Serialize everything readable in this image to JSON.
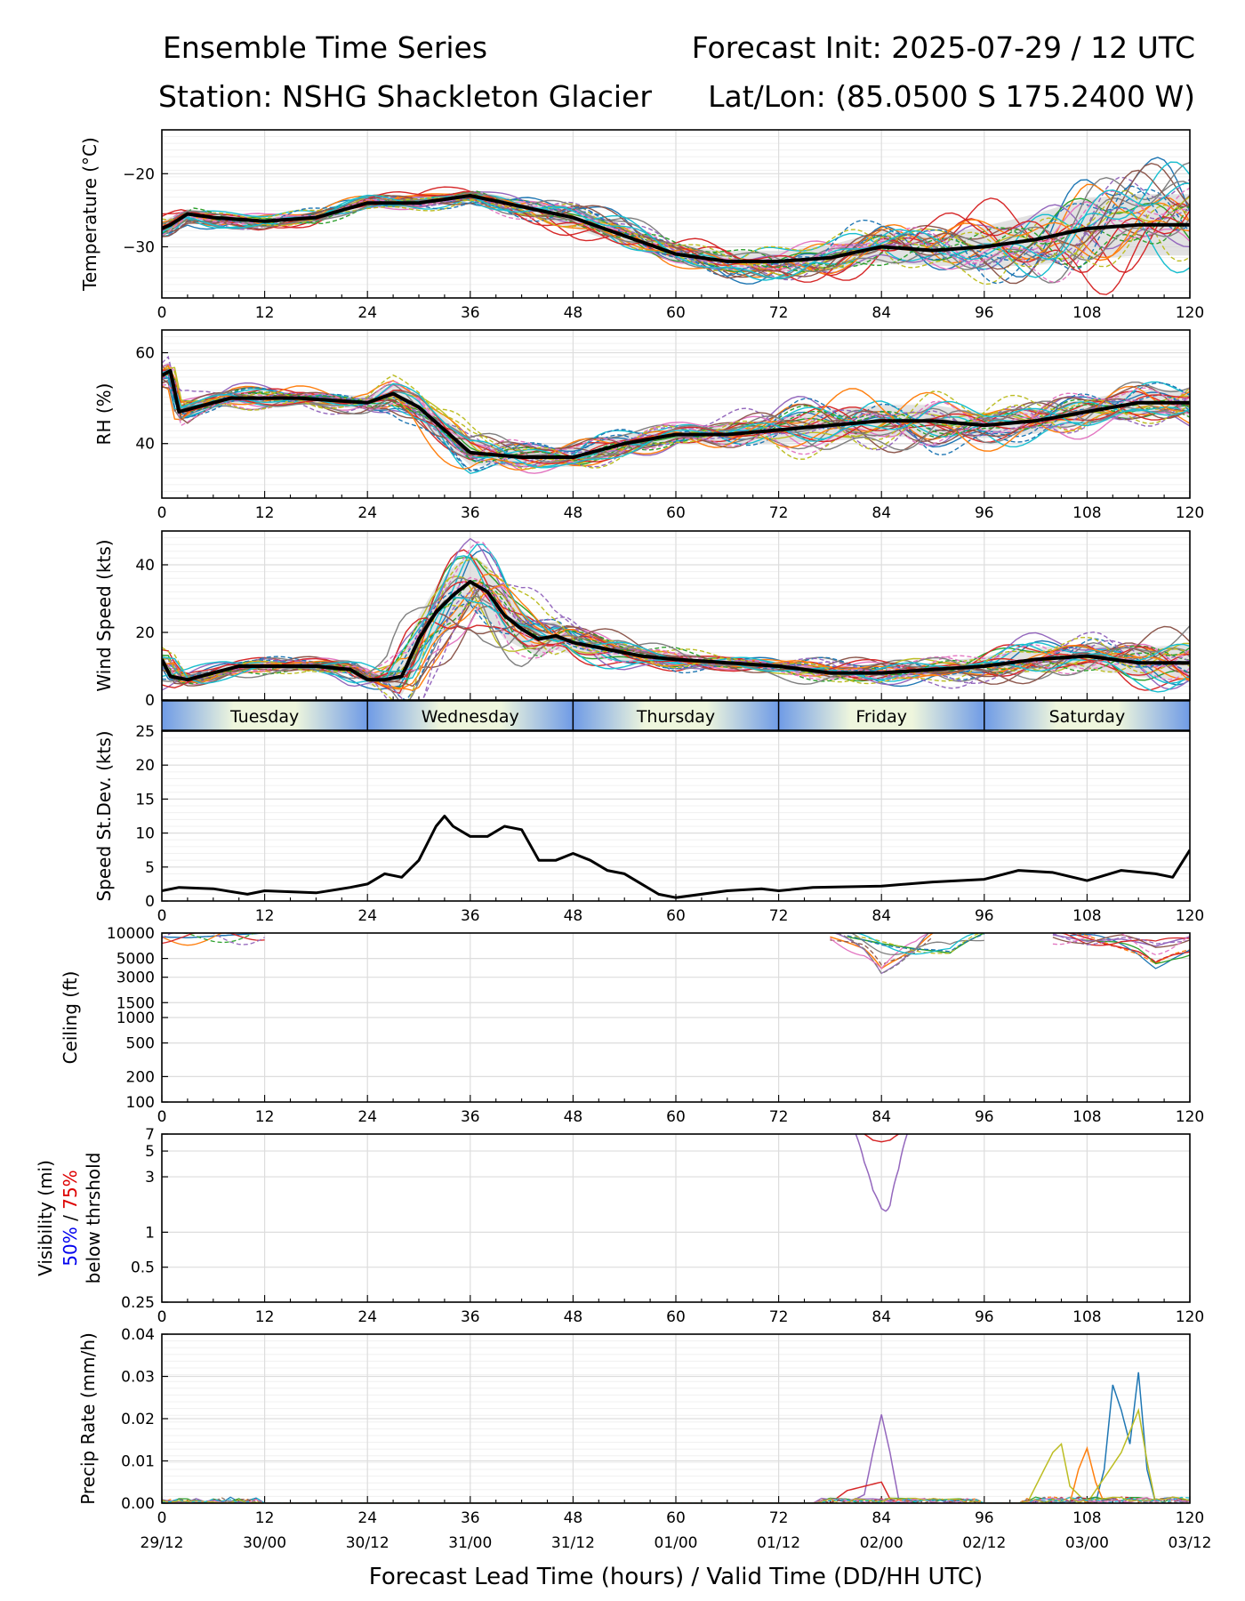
{
  "header": {
    "title": "Ensemble Time Series",
    "init": "Forecast Init: 2025-07-29 / 12 UTC",
    "station": "Station: NSHG Shackleton Glacier",
    "latlon": "Lat/Lon: (85.0500 S 175.2400 W)"
  },
  "xaxis": {
    "label": "Forecast Lead Time (hours) / Valid Time (DD/HH UTC)",
    "ticks": [
      0,
      12,
      24,
      36,
      48,
      60,
      72,
      84,
      96,
      108,
      120
    ],
    "valid_labels": [
      "29/12",
      "30/00",
      "30/12",
      "31/00",
      "31/12",
      "01/00",
      "01/12",
      "02/00",
      "02/12",
      "03/00",
      "03/12"
    ]
  },
  "day_band": [
    "Tuesday",
    "Wednesday",
    "Thursday",
    "Friday",
    "Saturday"
  ],
  "member_colors": [
    "#1f77b4",
    "#ff7f0e",
    "#2ca02c",
    "#d62728",
    "#9467bd",
    "#8c564b",
    "#e377c2",
    "#7f7f7f",
    "#bcbd22",
    "#17becf"
  ],
  "chart_data": [
    {
      "id": "temperature",
      "type": "line",
      "ylabel": "Temperature (°C)",
      "ylim": [
        -37,
        -14
      ],
      "yticks": [
        -30,
        -20
      ],
      "ytick_labels": [
        "−30",
        "−20"
      ],
      "grid": true,
      "mean": {
        "x": [
          0,
          1,
          3,
          6,
          12,
          18,
          24,
          30,
          36,
          42,
          48,
          54,
          60,
          66,
          72,
          78,
          84,
          90,
          96,
          102,
          108,
          114,
          120
        ],
        "y": [
          -27.5,
          -27,
          -25.5,
          -26,
          -26.5,
          -26,
          -24,
          -24,
          -23,
          -24.5,
          -26,
          -28.5,
          -31,
          -32,
          -32,
          -31.5,
          -30,
          -30.5,
          -30,
          -29,
          -27.5,
          -27,
          -27
        ]
      },
      "spread_base": [
        1.5,
        1.5,
        1,
        1,
        1,
        1,
        1,
        1,
        1,
        1.5,
        2,
        2,
        1.5,
        2,
        2,
        2.5,
        3,
        3,
        4,
        5,
        6,
        6,
        6
      ]
    },
    {
      "id": "rh",
      "type": "line",
      "ylabel": "RH (%)",
      "ylim": [
        28,
        65
      ],
      "yticks": [
        40,
        60
      ],
      "ytick_labels": [
        "40",
        "60"
      ],
      "grid": true,
      "mean": {
        "x": [
          0,
          1,
          2,
          4,
          8,
          16,
          24,
          27,
          30,
          36,
          42,
          48,
          54,
          60,
          66,
          72,
          78,
          84,
          90,
          96,
          102,
          108,
          114,
          120
        ],
        "y": [
          55,
          56,
          47,
          48,
          50,
          50,
          49,
          51,
          48,
          38,
          37,
          37,
          40,
          42,
          42,
          43,
          44,
          45,
          45,
          44,
          45,
          47,
          49,
          49
        ]
      },
      "spread_base": [
        3,
        3,
        3,
        2,
        2,
        2,
        2,
        3,
        4,
        4,
        3,
        3,
        3,
        2,
        3,
        4,
        5,
        5,
        5,
        4,
        4,
        4,
        4,
        4
      ]
    },
    {
      "id": "wind",
      "type": "line",
      "ylabel": "Wind Speed (kts)",
      "ylim": [
        0,
        50
      ],
      "yticks": [
        0,
        20,
        40
      ],
      "ytick_labels": [
        "0",
        "20",
        "40"
      ],
      "grid": true,
      "mean": {
        "x": [
          0,
          1,
          3,
          6,
          9,
          12,
          18,
          22,
          24,
          26,
          28,
          30,
          32,
          34,
          36,
          38,
          40,
          42,
          44,
          46,
          48,
          52,
          56,
          60,
          66,
          72,
          78,
          84,
          90,
          96,
          102,
          108,
          114,
          120
        ],
        "y": [
          12,
          7,
          6,
          8,
          10,
          10,
          10,
          9,
          6,
          6,
          7,
          18,
          26,
          31,
          35,
          32,
          25,
          21,
          18,
          19,
          17,
          15,
          13,
          12,
          11,
          10,
          8,
          8,
          9,
          10,
          12,
          13,
          11,
          11
        ]
      },
      "spread_base": [
        4,
        3,
        2,
        2,
        2,
        2,
        2,
        2,
        2,
        4,
        8,
        10,
        11,
        12,
        12,
        11,
        10,
        8,
        7,
        6,
        5,
        4,
        3,
        3,
        2,
        2,
        3,
        3,
        3,
        4,
        5,
        5,
        6,
        8
      ]
    },
    {
      "id": "wind_sd",
      "type": "line",
      "ylabel": "Speed St.Dev. (kts)",
      "ylim": [
        0,
        25
      ],
      "yticks": [
        0,
        5,
        10,
        15,
        20,
        25
      ],
      "ytick_labels": [
        "0",
        "5",
        "10",
        "15",
        "20",
        "25"
      ],
      "grid": true,
      "mean": {
        "x": [
          0,
          2,
          6,
          10,
          12,
          18,
          22,
          24,
          26,
          28,
          30,
          32,
          33,
          34,
          36,
          38,
          40,
          42,
          44,
          46,
          48,
          50,
          52,
          54,
          56,
          58,
          60,
          66,
          70,
          72,
          76,
          84,
          90,
          96,
          100,
          104,
          108,
          112,
          116,
          118,
          120
        ],
        "y": [
          1.5,
          2,
          1.8,
          1,
          1.5,
          1.2,
          2,
          2.5,
          4,
          3.5,
          6,
          11,
          12.5,
          11,
          9.5,
          9.5,
          11,
          10.5,
          6,
          6,
          7,
          6,
          4.5,
          4,
          2.5,
          1,
          0.5,
          1.5,
          1.8,
          1.5,
          2,
          2.2,
          2.8,
          3.2,
          4.5,
          4.2,
          3,
          4.5,
          4,
          3.5,
          7.5
        ]
      }
    },
    {
      "id": "ceiling",
      "type": "line",
      "ylabel": "Ceiling (ft)",
      "log_y": true,
      "ylim": [
        100,
        10000
      ],
      "yticks": [
        100,
        200,
        500,
        1000,
        1500,
        3000,
        5000,
        10000
      ],
      "ytick_labels": [
        "100",
        "200",
        "500",
        "1000",
        "1500",
        "3000",
        "5000",
        "10000"
      ],
      "grid": true,
      "members": [
        {
          "x": [
            0,
            3,
            6,
            12
          ],
          "y": [
            9000,
            8800,
            9200,
            10000
          ]
        },
        {
          "x": [
            78,
            82,
            84,
            86,
            88,
            90
          ],
          "y": [
            9000,
            6500,
            3800,
            5000,
            6500,
            10000
          ]
        },
        {
          "x": [
            80,
            84,
            88,
            92,
            96
          ],
          "y": [
            9000,
            7500,
            6500,
            5800,
            10000
          ]
        },
        {
          "x": [
            106,
            110,
            114,
            116,
            118,
            120
          ],
          "y": [
            10000,
            7500,
            6000,
            4500,
            5500,
            6000
          ]
        },
        {
          "x": [
            104,
            108,
            112,
            116,
            120
          ],
          "y": [
            9500,
            8000,
            8500,
            7000,
            9000
          ]
        }
      ]
    },
    {
      "id": "visibility",
      "type": "line",
      "ylabel": "Visibility (mi)",
      "ylabel_50": "50%",
      "ylabel_sep": " / ",
      "ylabel_75": "75%",
      "ylabel2": "below thrshold",
      "log_y": true,
      "ylim": [
        0.25,
        7
      ],
      "yticks": [
        0.25,
        0.5,
        1,
        3,
        5,
        7
      ],
      "ytick_labels": [
        "0.25",
        "0.5",
        "1",
        "3",
        "5",
        "7"
      ],
      "grid": true,
      "members": [
        {
          "color": "#9467bd",
          "x": [
            81,
            82,
            83,
            84,
            84.6,
            85,
            86,
            87
          ],
          "y": [
            7,
            4,
            2.3,
            1.6,
            1.5,
            1.7,
            3.5,
            7
          ]
        },
        {
          "color": "#d62728",
          "x": [
            82,
            83,
            84,
            85,
            86
          ],
          "y": [
            7,
            6.2,
            6,
            6.2,
            7
          ]
        }
      ]
    },
    {
      "id": "precip",
      "type": "line",
      "ylabel": "Precip Rate (mm/h)",
      "ylim": [
        0,
        0.04
      ],
      "yticks": [
        0,
        0.01,
        0.02,
        0.03,
        0.04
      ],
      "ytick_labels": [
        "0.00",
        "0.01",
        "0.02",
        "0.03",
        "0.04"
      ],
      "grid": true,
      "members": [
        {
          "color": "#9467bd",
          "x": [
            80,
            82,
            83,
            84,
            85,
            86,
            88
          ],
          "y": [
            0,
            0.002,
            0.012,
            0.021,
            0.012,
            0.001,
            0
          ]
        },
        {
          "color": "#d62728",
          "x": [
            78,
            80,
            82,
            84,
            85,
            86
          ],
          "y": [
            0,
            0.003,
            0.004,
            0.005,
            0.001,
            0
          ]
        },
        {
          "color": "#1f77b4",
          "x": [
            109,
            110,
            111,
            112,
            113,
            114,
            115,
            116
          ],
          "y": [
            0,
            0.008,
            0.028,
            0.022,
            0.014,
            0.031,
            0.008,
            0
          ]
        },
        {
          "color": "#ff7f0e",
          "x": [
            106,
            107,
            108,
            109,
            110
          ],
          "y": [
            0,
            0.008,
            0.013,
            0.005,
            0
          ]
        },
        {
          "color": "#bcbd22",
          "x": [
            101,
            104,
            105,
            106,
            108,
            112,
            114,
            115,
            116
          ],
          "y": [
            0,
            0.012,
            0.014,
            0.004,
            0,
            0.012,
            0.022,
            0.01,
            0
          ]
        }
      ]
    }
  ]
}
